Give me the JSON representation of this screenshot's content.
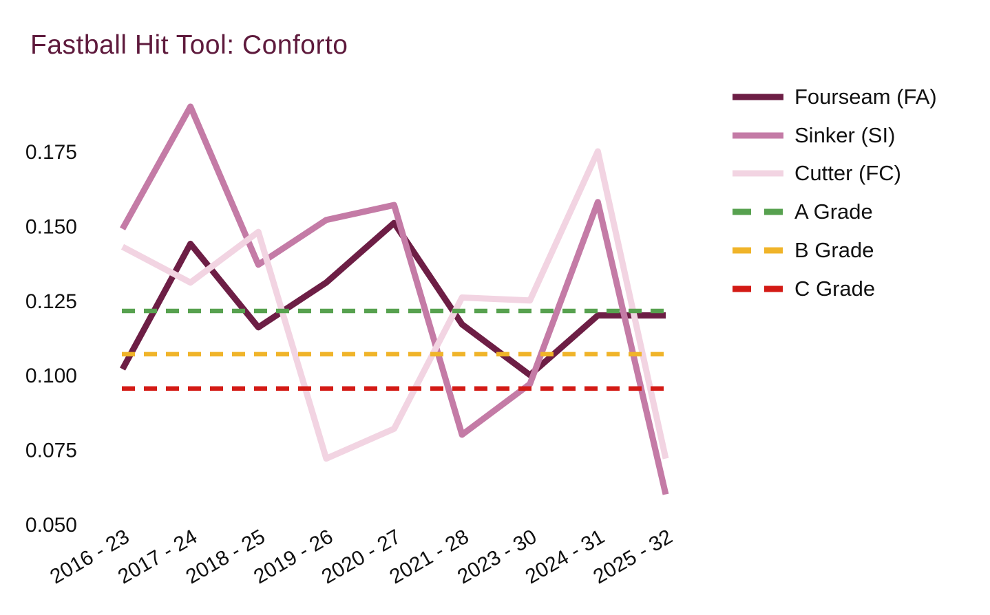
{
  "page": {
    "background": "#ffffff",
    "text_color": "#111111"
  },
  "chart_data": {
    "type": "line",
    "title": "Fastball Hit Tool: Conforto",
    "title_color": "#5e1a3c",
    "categories": [
      "2016 - 23",
      "2017 - 24",
      "2018 - 25",
      "2019 - 26",
      "2020 - 27",
      "2021 - 28",
      "2023 - 30",
      "2024 - 31",
      "2025 - 32"
    ],
    "series": [
      {
        "name": "Fourseam (FA)",
        "color": "#6d1e45",
        "style": "solid",
        "values": [
          0.102,
          0.144,
          0.116,
          0.131,
          0.151,
          0.117,
          0.1,
          0.12,
          0.12
        ]
      },
      {
        "name": "Sinker (SI)",
        "color": "#c47ba6",
        "style": "solid",
        "values": [
          0.149,
          0.19,
          0.137,
          0.152,
          0.157,
          0.08,
          0.097,
          0.158,
          0.06
        ]
      },
      {
        "name": "Cutter (FC)",
        "color": "#f2d4e2",
        "style": "solid",
        "values": [
          0.143,
          0.131,
          0.148,
          0.072,
          0.082,
          0.126,
          0.125,
          0.175,
          0.072
        ]
      }
    ],
    "reference_lines": [
      {
        "name": "A Grade",
        "color": "#57a14f",
        "style": "dashed",
        "value": 0.1215
      },
      {
        "name": "B Grade",
        "color": "#f0b429",
        "style": "dashed",
        "value": 0.107
      },
      {
        "name": "C Grade",
        "color": "#d31a15",
        "style": "dashed",
        "value": 0.0955
      }
    ],
    "yticks": [
      "0.175",
      "0.150",
      "0.125",
      "0.100",
      "0.075",
      "0.050"
    ],
    "ytick_values": [
      0.175,
      0.15,
      0.125,
      0.1,
      0.075,
      0.05
    ],
    "xlabel": "",
    "ylabel": "",
    "ylim": [
      0.044,
      0.196
    ],
    "grid": false,
    "axis_spines": false,
    "legend_position": "right"
  }
}
